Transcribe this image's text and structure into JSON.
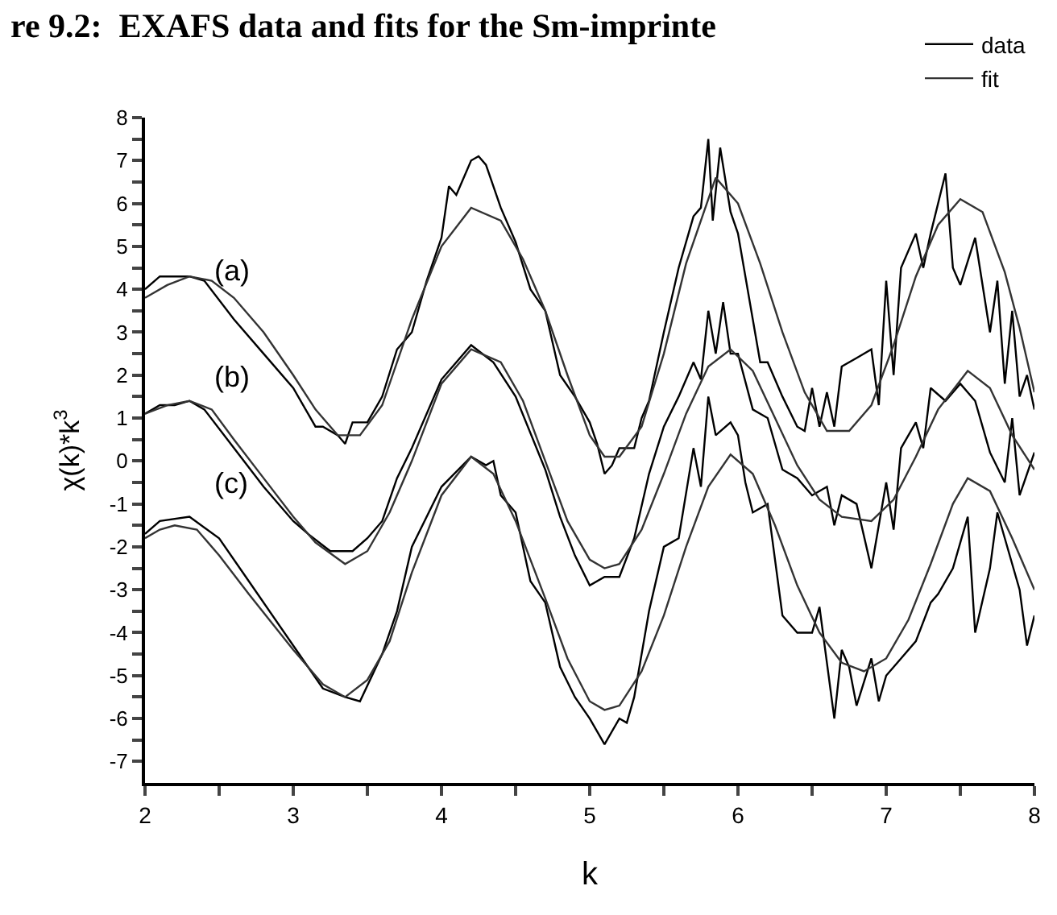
{
  "chart_data": {
    "type": "line",
    "title": "re 9.2:  EXAFS data and fits for the Sm-imprinte",
    "xlabel": "k",
    "ylabel": "χ(k)*k$^{3}$",
    "xlim": [
      2,
      8
    ],
    "ylim": [
      -7.5,
      8
    ],
    "xticks": [
      2,
      {
        "value": 2.5,
        "label": null
      },
      3,
      {
        "value": 3.5,
        "label": null
      },
      4,
      {
        "value": 4.5,
        "label": null
      },
      5,
      {
        "value": 5.5,
        "label": null
      },
      6,
      {
        "value": 6.5,
        "label": null
      },
      7,
      {
        "value": 7.5,
        "label": null
      },
      8
    ],
    "yticks": [
      -7,
      {
        "value": -6.5,
        "label": null
      },
      -6,
      {
        "value": -5.5,
        "label": null
      },
      -5,
      {
        "value": -4.5,
        "label": null
      },
      -4,
      {
        "value": -3.5,
        "label": null
      },
      -3,
      {
        "value": -2.5,
        "label": null
      },
      -2,
      {
        "value": -1.5,
        "label": null
      },
      -1,
      {
        "value": -0.5,
        "label": null
      },
      0,
      {
        "value": 0.5,
        "label": null
      },
      1,
      {
        "value": 1.5,
        "label": null
      },
      2,
      {
        "value": 2.5,
        "label": null
      },
      3,
      {
        "value": 3.5,
        "label": null
      },
      4,
      {
        "value": 4.5,
        "label": null
      },
      5,
      {
        "value": 5.5,
        "label": null
      },
      6,
      {
        "value": 6.5,
        "label": null
      },
      7,
      {
        "value": 7.5,
        "label": null
      },
      8
    ],
    "grid": false,
    "legend": "top right",
    "marker": "none",
    "line_style": "solid",
    "annotations": [
      "(a)",
      "(b)",
      "(c)"
    ],
    "series": [
      {
        "name": "data",
        "color": "#000000",
        "x": [
          2.0,
          2.1,
          2.3,
          2.4,
          2.6,
          2.8,
          3.0,
          3.1,
          3.15,
          3.2,
          3.3,
          3.35,
          3.4,
          3.5,
          3.6,
          3.7,
          3.8,
          3.9,
          4.0,
          4.05,
          4.1,
          4.2,
          4.25,
          4.3,
          4.4,
          4.5,
          4.6,
          4.7,
          4.8,
          4.9,
          5.0,
          5.05,
          5.1,
          5.15,
          5.2,
          5.3,
          5.35,
          5.4,
          5.5,
          5.6,
          5.7,
          5.75,
          5.8,
          5.83,
          5.88,
          5.95,
          6.0,
          6.1,
          6.15,
          6.2,
          6.3,
          6.4,
          6.45,
          6.5,
          6.55,
          6.6,
          6.65,
          6.7,
          6.8,
          6.9,
          6.95,
          7.0,
          7.05,
          7.1,
          7.2,
          7.25,
          7.3,
          7.4,
          7.45,
          7.5,
          7.6,
          7.7,
          7.75,
          7.8,
          7.85,
          7.9,
          7.95,
          8.0
        ],
        "values": [
          4.0,
          4.3,
          4.3,
          4.2,
          3.3,
          2.5,
          1.7,
          1.1,
          0.8,
          0.8,
          0.6,
          0.4,
          0.9,
          0.9,
          1.5,
          2.6,
          3.0,
          4.2,
          5.2,
          6.4,
          6.2,
          7.0,
          7.1,
          6.9,
          5.9,
          5.1,
          4.0,
          3.5,
          2.0,
          1.5,
          0.9,
          0.4,
          -0.3,
          -0.1,
          0.3,
          0.3,
          1.0,
          1.4,
          3.0,
          4.5,
          5.7,
          5.9,
          7.5,
          5.6,
          7.3,
          5.8,
          5.3,
          3.3,
          2.3,
          2.3,
          1.5,
          0.8,
          0.7,
          1.7,
          0.8,
          1.6,
          0.8,
          2.2,
          2.4,
          2.6,
          1.3,
          4.2,
          2.0,
          4.5,
          5.3,
          4.5,
          5.3,
          6.7,
          4.5,
          4.1,
          5.2,
          3.0,
          4.2,
          1.8,
          3.5,
          1.5,
          2.0,
          1.2
        ]
      },
      {
        "name": "fit",
        "color": "#333333",
        "x": [
          2.0,
          2.15,
          2.3,
          2.45,
          2.6,
          2.8,
          3.0,
          3.15,
          3.3,
          3.45,
          3.6,
          3.8,
          4.0,
          4.2,
          4.4,
          4.55,
          4.7,
          4.85,
          5.0,
          5.1,
          5.2,
          5.35,
          5.5,
          5.65,
          5.85,
          6.0,
          6.15,
          6.3,
          6.45,
          6.6,
          6.75,
          6.9,
          7.05,
          7.2,
          7.35,
          7.5,
          7.65,
          7.8,
          7.9,
          8.0
        ],
        "values": [
          3.8,
          4.1,
          4.3,
          4.2,
          3.8,
          3.0,
          2.0,
          1.2,
          0.6,
          0.6,
          1.3,
          3.3,
          5.0,
          5.9,
          5.6,
          4.7,
          3.5,
          2.0,
          0.6,
          0.1,
          0.1,
          0.8,
          2.5,
          4.6,
          6.6,
          6.0,
          4.6,
          3.0,
          1.6,
          0.7,
          0.7,
          1.3,
          2.7,
          4.3,
          5.5,
          6.1,
          5.8,
          4.4,
          3.1,
          1.6
        ]
      },
      {
        "color": "#000000",
        "x": [
          2.0,
          2.1,
          2.2,
          2.3,
          2.4,
          2.6,
          2.8,
          3.0,
          3.1,
          3.25,
          3.4,
          3.5,
          3.6,
          3.7,
          3.8,
          4.0,
          4.2,
          4.35,
          4.5,
          4.7,
          4.8,
          4.9,
          5.0,
          5.1,
          5.2,
          5.3,
          5.4,
          5.5,
          5.6,
          5.7,
          5.75,
          5.8,
          5.85,
          5.9,
          5.95,
          6.0,
          6.1,
          6.2,
          6.3,
          6.4,
          6.5,
          6.6,
          6.65,
          6.7,
          6.8,
          6.9,
          7.0,
          7.05,
          7.1,
          7.2,
          7.25,
          7.3,
          7.4,
          7.5,
          7.6,
          7.7,
          7.8,
          7.85,
          7.9,
          8.0
        ],
        "values": [
          1.1,
          1.3,
          1.3,
          1.4,
          1.2,
          0.3,
          -0.6,
          -1.4,
          -1.7,
          -2.1,
          -2.1,
          -1.8,
          -1.4,
          -0.4,
          0.3,
          1.9,
          2.7,
          2.3,
          1.5,
          -0.2,
          -1.3,
          -2.2,
          -2.9,
          -2.7,
          -2.7,
          -1.8,
          -0.3,
          0.8,
          1.5,
          2.3,
          1.9,
          3.5,
          2.5,
          3.7,
          2.5,
          2.5,
          1.2,
          1.0,
          -0.2,
          -0.4,
          -0.8,
          -0.6,
          -1.5,
          -0.8,
          -1.0,
          -2.5,
          -0.5,
          -1.6,
          0.3,
          0.9,
          0.3,
          1.7,
          1.4,
          1.8,
          1.4,
          0.2,
          -0.5,
          1.0,
          -0.8,
          0.2
        ]
      },
      {
        "color": "#333333",
        "x": [
          2.0,
          2.15,
          2.3,
          2.45,
          2.6,
          2.8,
          3.0,
          3.15,
          3.35,
          3.5,
          3.65,
          3.8,
          4.0,
          4.2,
          4.4,
          4.55,
          4.7,
          4.85,
          5.0,
          5.1,
          5.2,
          5.35,
          5.5,
          5.65,
          5.8,
          5.95,
          6.1,
          6.25,
          6.4,
          6.55,
          6.7,
          6.9,
          7.05,
          7.2,
          7.35,
          7.55,
          7.7,
          7.85,
          8.0
        ],
        "values": [
          1.1,
          1.3,
          1.4,
          1.2,
          0.5,
          -0.4,
          -1.3,
          -1.9,
          -2.4,
          -2.1,
          -1.2,
          0.0,
          1.8,
          2.6,
          2.3,
          1.4,
          0.0,
          -1.4,
          -2.3,
          -2.5,
          -2.4,
          -1.6,
          -0.3,
          1.1,
          2.2,
          2.6,
          2.1,
          1.0,
          -0.1,
          -0.9,
          -1.3,
          -1.4,
          -0.9,
          0.1,
          1.2,
          2.1,
          1.7,
          0.6,
          -0.2
        ]
      },
      {
        "color": "#000000",
        "x": [
          2.0,
          2.1,
          2.3,
          2.5,
          2.7,
          3.0,
          3.2,
          3.35,
          3.45,
          3.6,
          3.7,
          3.8,
          4.0,
          4.2,
          4.3,
          4.35,
          4.4,
          4.5,
          4.6,
          4.7,
          4.8,
          4.9,
          5.0,
          5.1,
          5.2,
          5.25,
          5.3,
          5.4,
          5.5,
          5.6,
          5.7,
          5.75,
          5.8,
          5.85,
          5.95,
          6.0,
          6.05,
          6.1,
          6.2,
          6.3,
          6.4,
          6.5,
          6.55,
          6.65,
          6.7,
          6.75,
          6.8,
          6.9,
          6.95,
          7.0,
          7.1,
          7.2,
          7.3,
          7.35,
          7.45,
          7.55,
          7.6,
          7.7,
          7.75,
          7.8,
          7.85,
          7.9,
          7.95,
          8.0
        ],
        "values": [
          -1.7,
          -1.4,
          -1.3,
          -1.8,
          -2.8,
          -4.3,
          -5.3,
          -5.5,
          -5.6,
          -4.5,
          -3.5,
          -2.0,
          -0.6,
          0.1,
          -0.1,
          0.0,
          -0.8,
          -1.2,
          -2.8,
          -3.3,
          -4.8,
          -5.5,
          -6.0,
          -6.6,
          -6.0,
          -6.1,
          -5.5,
          -3.5,
          -2.0,
          -1.8,
          0.3,
          -0.6,
          1.5,
          0.6,
          0.9,
          0.6,
          -0.5,
          -1.2,
          -1.0,
          -3.6,
          -4.0,
          -4.0,
          -3.4,
          -6.0,
          -4.4,
          -4.8,
          -5.7,
          -4.6,
          -5.6,
          -5.0,
          -4.6,
          -4.2,
          -3.3,
          -3.1,
          -2.5,
          -1.3,
          -4.0,
          -2.5,
          -1.2,
          -1.8,
          -2.4,
          -3.0,
          -4.3,
          -3.6
        ]
      },
      {
        "color": "#333333",
        "x": [
          2.0,
          2.1,
          2.2,
          2.35,
          2.5,
          2.7,
          3.0,
          3.2,
          3.35,
          3.5,
          3.65,
          3.8,
          4.0,
          4.2,
          4.35,
          4.5,
          4.7,
          4.85,
          5.0,
          5.1,
          5.2,
          5.35,
          5.5,
          5.65,
          5.8,
          5.95,
          6.1,
          6.25,
          6.4,
          6.55,
          6.7,
          6.85,
          7.0,
          7.15,
          7.3,
          7.45,
          7.55,
          7.7,
          7.85,
          8.0
        ],
        "values": [
          -1.8,
          -1.6,
          -1.5,
          -1.6,
          -2.2,
          -3.1,
          -4.4,
          -5.2,
          -5.5,
          -5.1,
          -4.2,
          -2.6,
          -0.8,
          0.1,
          -0.3,
          -1.4,
          -3.2,
          -4.6,
          -5.6,
          -5.8,
          -5.7,
          -4.9,
          -3.6,
          -2.0,
          -0.6,
          0.15,
          -0.3,
          -1.5,
          -2.9,
          -4.0,
          -4.7,
          -4.9,
          -4.6,
          -3.7,
          -2.4,
          -1.0,
          -0.4,
          -0.7,
          -1.8,
          -3.0
        ]
      }
    ]
  }
}
